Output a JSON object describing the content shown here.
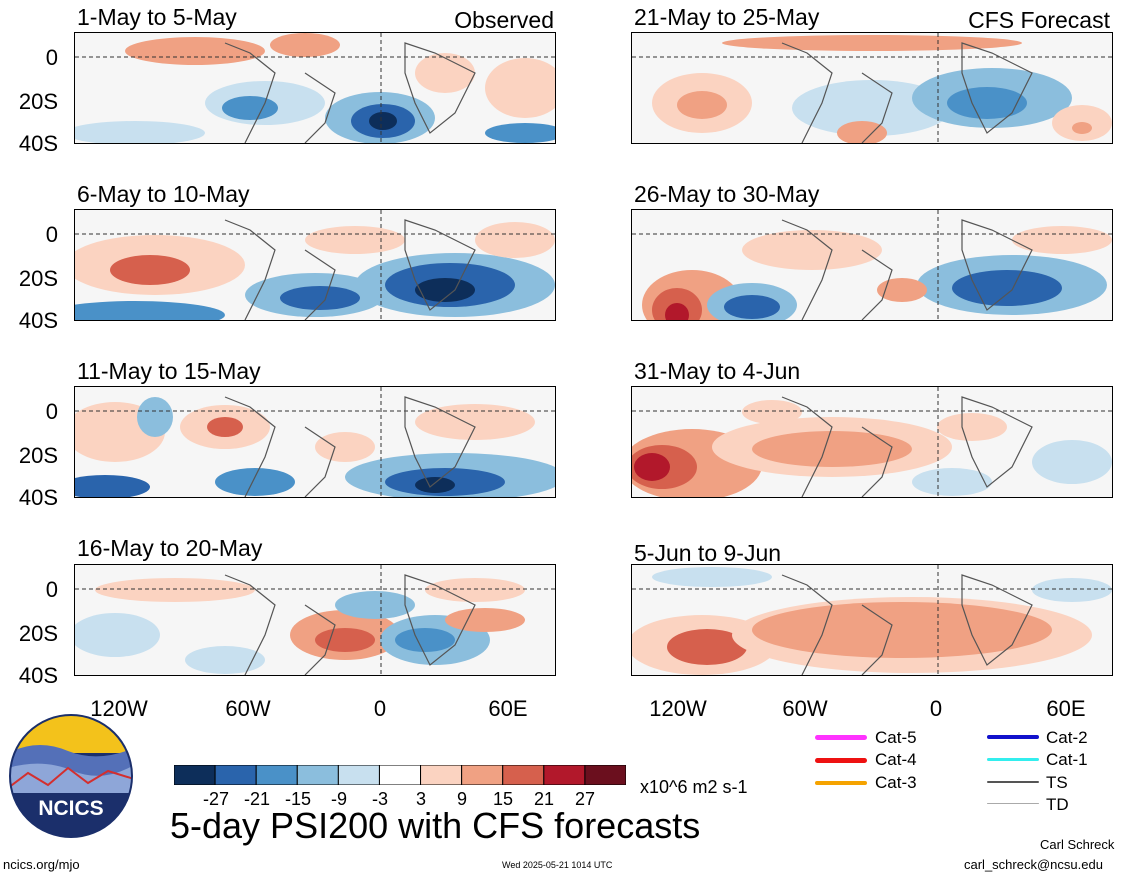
{
  "panels_left": [
    {
      "title": "1-May to 5-May",
      "tag": "Observed"
    },
    {
      "title": "6-May to 10-May",
      "tag": ""
    },
    {
      "title": "11-May to 15-May",
      "tag": ""
    },
    {
      "title": "16-May to 20-May",
      "tag": ""
    }
  ],
  "panels_right": [
    {
      "title": "21-May to 25-May",
      "tag": "CFS Forecast"
    },
    {
      "title": "26-May to 30-May",
      "tag": ""
    },
    {
      "title": "31-May to 4-Jun",
      "tag": ""
    },
    {
      "title": "5-Jun to 9-Jun",
      "tag": ""
    }
  ],
  "lat_labels": [
    "0",
    "20S",
    "40S"
  ],
  "lon_labels": [
    "120W",
    "60W",
    "0",
    "60E"
  ],
  "colorbar": {
    "ticks": [
      "-27",
      "-21",
      "-15",
      "-9",
      "-3",
      "3",
      "9",
      "15",
      "21",
      "27"
    ],
    "colors": [
      "#0d2e5a",
      "#2a64ac",
      "#4a91c8",
      "#8bbedd",
      "#c8e0ef",
      "#ffffff",
      "#fbd3c1",
      "#f0a183",
      "#d6604d",
      "#b2182b",
      "#6b0f1e"
    ],
    "units": "x10^6 m2 s-1"
  },
  "storm_legend": {
    "items": [
      {
        "label": "Cat-5",
        "color": "#ff33ff"
      },
      {
        "label": "Cat-4",
        "color": "#ee1111"
      },
      {
        "label": "Cat-3",
        "color": "#f5a300"
      },
      {
        "label": "Cat-2",
        "color": "#1111cc"
      },
      {
        "label": "Cat-1",
        "color": "#33eeee"
      },
      {
        "label": "TS",
        "color": "#555555"
      },
      {
        "label": "TD",
        "color": "#aaaaaa"
      }
    ]
  },
  "logo": {
    "text": "NCICS"
  },
  "footer": {
    "title": "5-day PSI200 with CFS forecasts",
    "url": "ncics.org/mjo",
    "timestamp": "Wed 2025-05-21 1014 UTC",
    "author": "Carl Schreck",
    "email": "carl_schreck@ncsu.edu"
  }
}
